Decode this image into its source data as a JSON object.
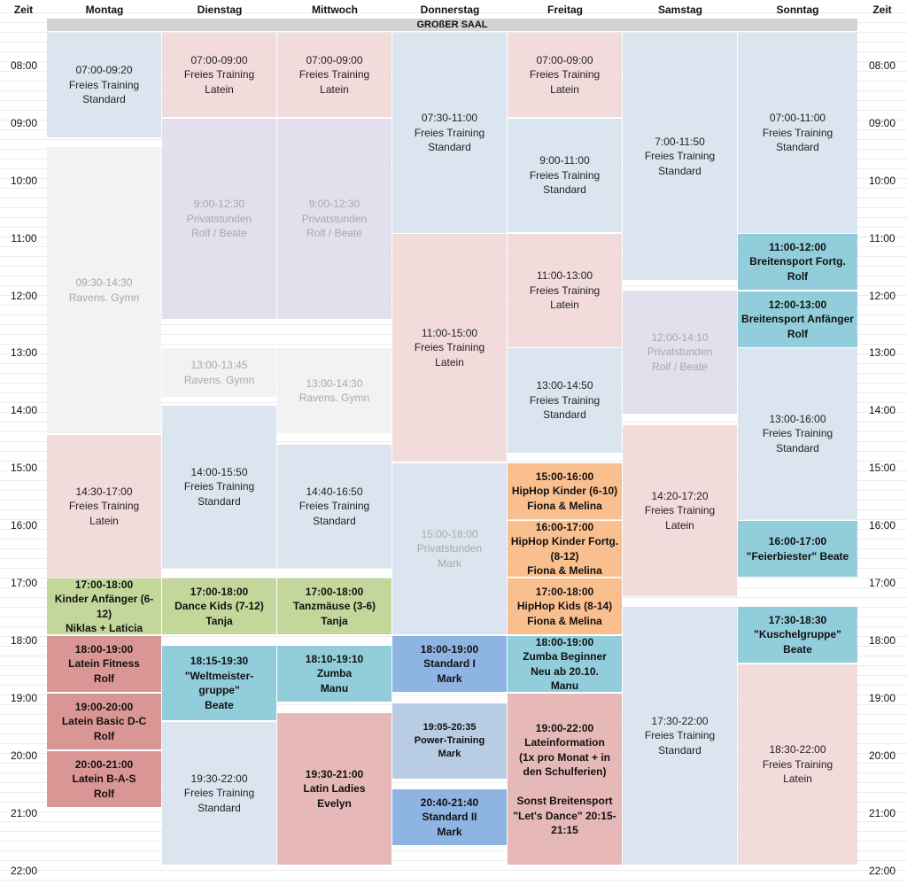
{
  "headers": {
    "zeit_left": "Zeit",
    "days": [
      "Montag",
      "Dienstag",
      "Mittwoch",
      "Donnerstag",
      "Freitag",
      "Samstag",
      "Sonntag"
    ],
    "zeit_right": "Zeit"
  },
  "room": "GROßER SAAL",
  "times": [
    "08:00",
    "09:00",
    "10:00",
    "11:00",
    "12:00",
    "13:00",
    "14:00",
    "15:00",
    "16:00",
    "17:00",
    "18:00",
    "19:00",
    "20:00",
    "21:00",
    "22:00"
  ],
  "events": {
    "mo1": "07:00-09:20\nFreies Training\nStandard",
    "mo2": "09:30-14:30\nRavens. Gymn",
    "mo3": "14:30-17:00\nFreies Training\nLatein",
    "mo4": "17:00-18:00\nKinder Anfänger (6-12)\nNiklas + Laticia",
    "mo5": "18:00-19:00\nLatein Fitness\nRolf",
    "mo6": "19:00-20:00\nLatein Basic D-C\nRolf",
    "mo7": "20:00-21:00\nLatein B-A-S\nRolf",
    "di1": "07:00-09:00\nFreies Training\nLatein",
    "di2": "9:00-12:30\nPrivatstunden\nRolf / Beate",
    "di3": "13:00-13:45\nRavens. Gymn",
    "di4": "14:00-15:50\nFreies Training\nStandard",
    "di5": "17:00-18:00\nDance Kids (7-12)\nTanja",
    "di6": "18:15-19:30\n\"Weltmeister-gruppe\"\nBeate",
    "di7": "19:30-22:00\nFreies Training\nStandard",
    "mi1": "07:00-09:00\nFreies Training\nLatein",
    "mi2": "9:00-12:30\nPrivatstunden\nRolf / Beate",
    "mi3": "13:00-14:30\nRavens. Gymn",
    "mi4": "14:40-16:50\nFreies Training\nStandard",
    "mi5": "17:00-18:00\nTanzmäuse (3-6)\nTanja",
    "mi6": "18:10-19:10\nZumba\nManu",
    "mi7": "19:30-21:00\nLatin Ladies\nEvelyn",
    "do1": "07:30-11:00\nFreies Training\nStandard",
    "do2": "11:00-15:00\nFreies Training\nLatein",
    "do3": "15:00-18:00\nPrivatstunden\nMark",
    "do4": "18:00-19:00\nStandard I\nMark",
    "do5": "19:05-20:35\nPower-Training\nMark",
    "do6": "20:40-21:40\nStandard II\nMark",
    "fr1": "07:00-09:00\nFreies Training\nLatein",
    "fr2": "9:00-11:00\nFreies Training\nStandard",
    "fr3": "11:00-13:00\nFreies Training\nLatein",
    "fr4": "13:00-14:50\nFreies Training\nStandard",
    "fr5": "15:00-16:00\nHipHop Kinder (6-10)\nFiona & Melina",
    "fr6": "16:00-17:00\nHipHop Kinder Fortg.\n(8-12)\nFiona & Melina",
    "fr7": "17:00-18:00\nHipHop Kids (8-14)\nFiona & Melina",
    "fr8": "18:00-19:00\nZumba Beginner\nNeu ab 20.10.\nManu",
    "fr9": "19:00-22:00\nLateinformation\n(1x pro Monat + in den Schulferien)\n\nSonst Breitensport \"Let's Dance\" 20:15-21:15",
    "sa1": "7:00-11:50\nFreies Training\nStandard",
    "sa2": "12:00-14:10\nPrivatstunden\nRolf / Beate",
    "sa3": "14:20-17:20\nFreies Training\nLatein",
    "sa4": "17:30-22:00\nFreies Training\nStandard",
    "so1": "07:00-11:00\nFreies Training\nStandard",
    "so2": "11:00-12:00\nBreitensport Fortg.\nRolf",
    "so3": "12:00-13:00\nBreitensport Anfänger\nRolf",
    "so4": "13:00-16:00\nFreies Training\nStandard",
    "so5": "16:00-17:00\n\"Feierbiester\" Beate",
    "so6": "17:30-18:30\n\"Kuschelgruppe\"\nBeate",
    "so7": "18:30-22:00\nFreies Training\nLatein"
  },
  "colors": {
    "freies_standard": "#dbe5f0",
    "freies_latein": "#f2dcdb",
    "privatstunden": "#e4dfec",
    "ravens_gymn": "#f2f2f2",
    "kids": "#c4d79b",
    "latein_kurse": "#da9694",
    "teal_kurse": "#92cddc",
    "hiphop": "#fabf8f",
    "standard_kurse": "#8db4e2",
    "power_training": "#b8cce4",
    "latin_ladies": "#e6b8b7",
    "room_header": "#d3d3d3"
  }
}
